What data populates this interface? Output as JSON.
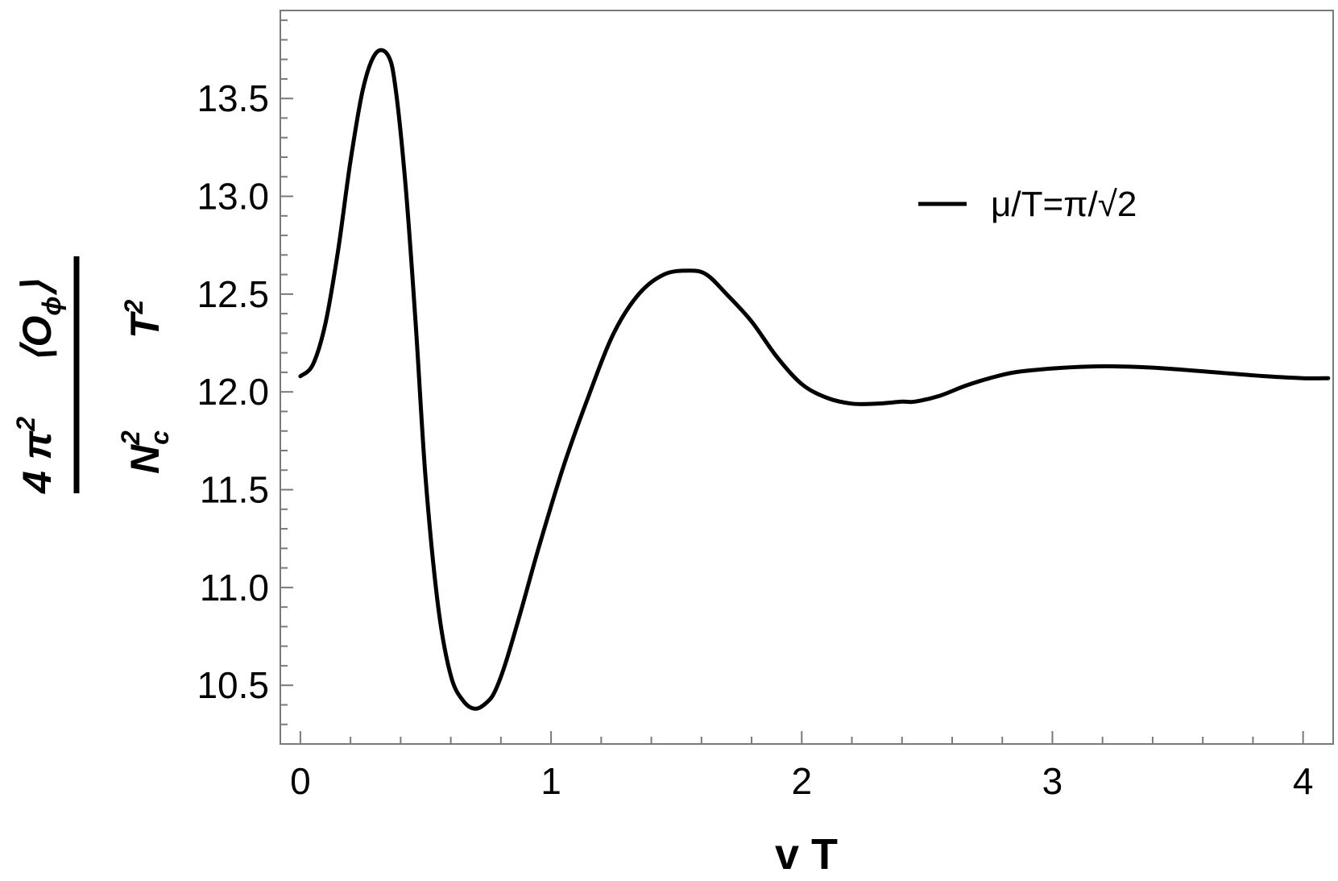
{
  "chart_data": {
    "type": "line",
    "xlabel": "v T",
    "ylabel": {
      "numerator_left": "4 π",
      "numerator_left_exp": "2",
      "numerator_right": "⟨O",
      "numerator_right_sub": "ϕ",
      "numerator_right_close": "⟩",
      "denominator_left": "N",
      "denominator_left_sub": "c",
      "denominator_left_exp": "2",
      "denominator_right": "T",
      "denominator_right_exp": "2"
    },
    "xlim": [
      -0.08,
      4.12
    ],
    "ylim": [
      10.2,
      13.95
    ],
    "x_ticks": [
      "0",
      "1",
      "2",
      "3",
      "4"
    ],
    "y_ticks": [
      "10.5",
      "11.0",
      "11.5",
      "12.0",
      "12.5",
      "13.0",
      "13.5"
    ],
    "legend_placement": "top-right",
    "series": [
      {
        "name": "μ/T=π/√2",
        "color": "#000000",
        "x": [
          0.0,
          0.05,
          0.1,
          0.15,
          0.2,
          0.25,
          0.3,
          0.35,
          0.38,
          0.42,
          0.46,
          0.5,
          0.55,
          0.6,
          0.65,
          0.7,
          0.75,
          0.78,
          0.82,
          0.88,
          0.95,
          1.05,
          1.15,
          1.25,
          1.35,
          1.45,
          1.55,
          1.62,
          1.7,
          1.8,
          1.9,
          2.0,
          2.1,
          2.2,
          2.3,
          2.4,
          2.45,
          2.55,
          2.65,
          2.75,
          2.85,
          3.0,
          3.15,
          3.28,
          3.45,
          3.65,
          3.85,
          4.0,
          4.1
        ],
        "values": [
          12.08,
          12.14,
          12.35,
          12.72,
          13.18,
          13.55,
          13.73,
          13.72,
          13.55,
          13.05,
          12.35,
          11.55,
          10.9,
          10.55,
          10.42,
          10.38,
          10.42,
          10.48,
          10.62,
          10.88,
          11.2,
          11.62,
          11.98,
          12.3,
          12.5,
          12.6,
          12.62,
          12.6,
          12.5,
          12.36,
          12.18,
          12.04,
          11.97,
          11.94,
          11.94,
          11.95,
          11.95,
          11.98,
          12.03,
          12.07,
          12.1,
          12.12,
          12.13,
          12.13,
          12.12,
          12.1,
          12.08,
          12.07,
          12.07
        ]
      }
    ]
  }
}
